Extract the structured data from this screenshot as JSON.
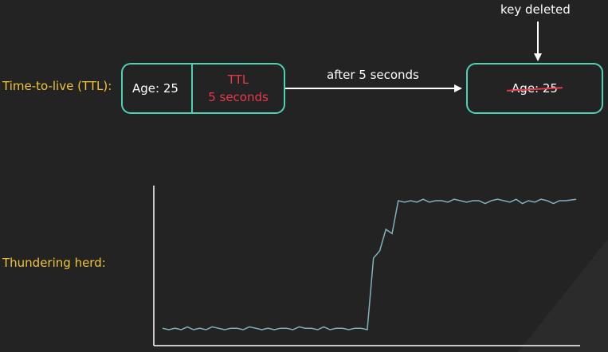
{
  "labels": {
    "ttl": "Time-to-live (TTL):",
    "herd": "Thundering herd:"
  },
  "ttl_box": {
    "age": "Age: 25",
    "ttl_line1": "TTL",
    "ttl_line2": "5 seconds"
  },
  "arrow_label": "after 5 seconds",
  "deleted_box": {
    "age": "Age: 25"
  },
  "key_deleted_label": "key deleted",
  "colors": {
    "background": "#232323",
    "label": "#f2c531",
    "box_border": "#4fd1b4",
    "ttl_text": "#e8394a",
    "line": "#7fb2bf"
  },
  "chart_data": {
    "type": "line",
    "title": "",
    "xlabel": "",
    "ylabel": "",
    "grid": false,
    "xlim": [
      0,
      100
    ],
    "ylim": [
      0,
      100
    ],
    "series": [
      {
        "x": [
          0,
          1.5,
          3,
          4.5,
          6,
          7.5,
          9,
          10.5,
          12,
          13.5,
          15,
          16.5,
          18,
          19.5,
          21,
          22.5,
          24,
          25.5,
          27,
          28.5,
          30,
          31.5,
          33,
          34.5,
          36,
          37.5,
          39,
          40.5,
          42,
          43.5,
          45,
          46.5,
          48,
          49.5,
          51,
          52.5,
          54,
          55.5,
          57,
          58.5,
          60,
          61.5,
          63,
          64.5,
          66,
          67.5,
          69,
          70.5,
          72,
          73.5,
          75,
          76.5,
          78,
          79.5,
          81,
          82.5,
          84,
          85.5,
          87,
          88.5,
          90,
          91.5,
          93,
          94.5,
          96,
          97.5,
          100
        ],
        "values": [
          6,
          5,
          6,
          5,
          7,
          5,
          6,
          5,
          7,
          6,
          5,
          6,
          6,
          5,
          7,
          6,
          5,
          6,
          5,
          6,
          6,
          5,
          7,
          6,
          6,
          5,
          7,
          5,
          6,
          6,
          5,
          6,
          6,
          5,
          55,
          60,
          75,
          72,
          95,
          94,
          95,
          94,
          96,
          94,
          95,
          95,
          94,
          96,
          95,
          94,
          95,
          95,
          93,
          95,
          96,
          95,
          94,
          96,
          93,
          95,
          94,
          96,
          95,
          93,
          95,
          95,
          96
        ]
      }
    ]
  }
}
